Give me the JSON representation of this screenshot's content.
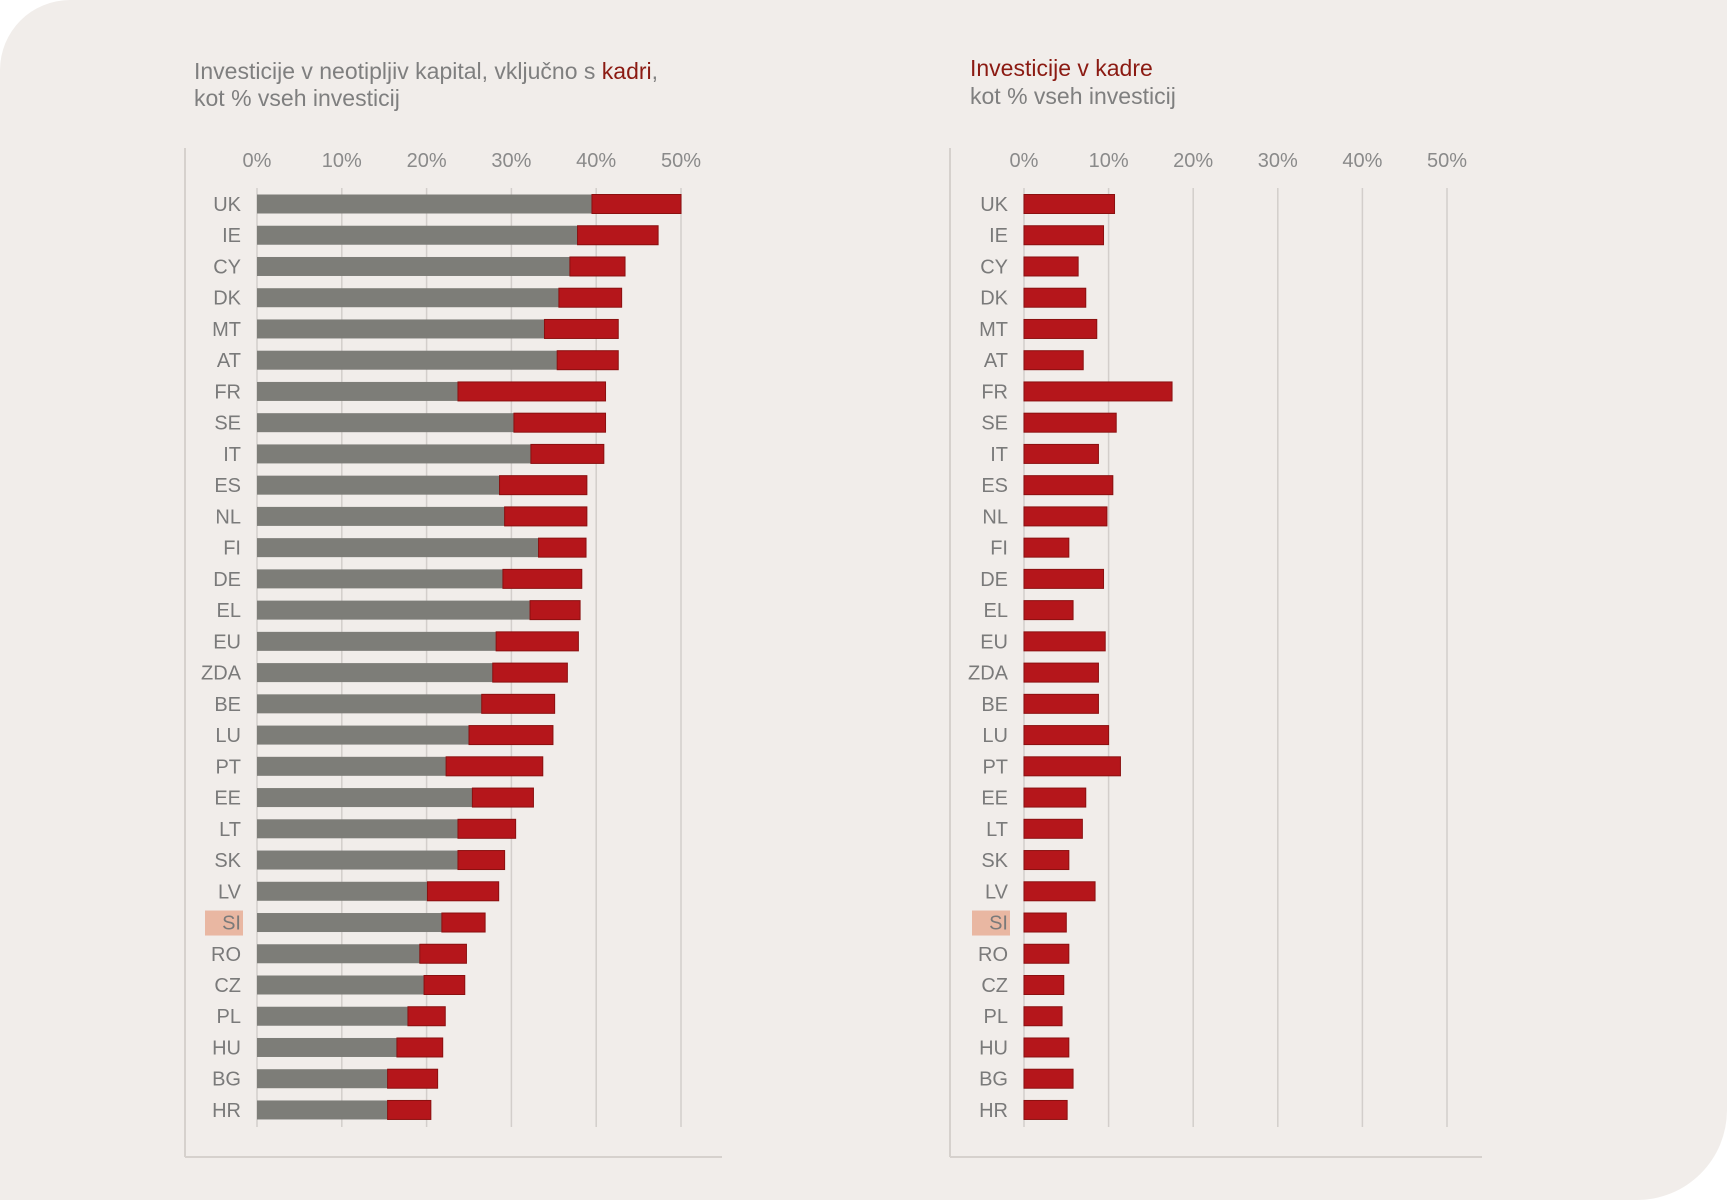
{
  "colors": {
    "background": "#f1edea",
    "other": "#7d7d78",
    "staff": "#b5161b",
    "staff_border": "#8b1010",
    "title_accent": "#8b1a12",
    "highlight": "#e9b7a2",
    "text": "#7f7f7f"
  },
  "chart_data": [
    {
      "type": "bar",
      "orientation": "horizontal",
      "stacked": true,
      "title_parts": [
        "Investicije v neotipljiv kapital, vključno s ",
        "kadri",
        ","
      ],
      "subtitle": "kot % vseh investicij",
      "xlim": [
        0,
        50
      ],
      "ticks": [
        "0%",
        "10%",
        "20%",
        "30%",
        "40%",
        "50%"
      ],
      "grid": true,
      "highlight_category": "SI",
      "categories": [
        "UK",
        "IE",
        "CY",
        "DK",
        "MT",
        "AT",
        "FR",
        "SE",
        "IT",
        "ES",
        "NL",
        "FI",
        "DE",
        "EL",
        "EU",
        "ZDA",
        "BE",
        "LU",
        "PT",
        "EE",
        "LT",
        "SK",
        "LV",
        "SI",
        "RO",
        "CZ",
        "PL",
        "HU",
        "BG",
        "HR"
      ],
      "series": [
        {
          "values": [
            39.5,
            37.8,
            36.9,
            35.6,
            33.9,
            35.4,
            23.7,
            30.3,
            32.3,
            28.6,
            29.2,
            33.2,
            29.0,
            32.2,
            28.2,
            27.8,
            26.5,
            25.0,
            22.3,
            25.4,
            23.7,
            23.7,
            20.1,
            21.8,
            19.2,
            19.7,
            17.8,
            16.5,
            15.4,
            15.4
          ]
        },
        {
          "values": [
            10.5,
            9.5,
            6.5,
            7.4,
            8.7,
            7.2,
            17.4,
            10.8,
            8.6,
            10.3,
            9.7,
            5.6,
            9.3,
            5.9,
            9.7,
            8.8,
            8.6,
            9.9,
            11.4,
            7.2,
            6.8,
            5.5,
            8.4,
            5.1,
            5.5,
            4.8,
            4.4,
            5.4,
            5.9,
            5.1
          ]
        }
      ]
    },
    {
      "type": "bar",
      "orientation": "horizontal",
      "title": "Investicije v kadre",
      "subtitle": "kot % vseh investicij",
      "xlim": [
        0,
        50
      ],
      "ticks": [
        "0%",
        "10%",
        "20%",
        "30%",
        "40%",
        "50%"
      ],
      "grid": true,
      "highlight_category": "SI",
      "categories": [
        "UK",
        "IE",
        "CY",
        "DK",
        "MT",
        "AT",
        "FR",
        "SE",
        "IT",
        "ES",
        "NL",
        "FI",
        "DE",
        "EL",
        "EU",
        "ZDA",
        "BE",
        "LU",
        "PT",
        "EE",
        "LT",
        "SK",
        "LV",
        "SI",
        "RO",
        "CZ",
        "PL",
        "HU",
        "BG",
        "HR"
      ],
      "values": [
        10.7,
        9.4,
        6.4,
        7.3,
        8.6,
        7.0,
        17.5,
        10.9,
        8.8,
        10.5,
        9.8,
        5.3,
        9.4,
        5.8,
        9.6,
        8.8,
        8.8,
        10.0,
        11.4,
        7.3,
        6.9,
        5.3,
        8.4,
        5.0,
        5.3,
        4.7,
        4.5,
        5.3,
        5.8,
        5.1
      ]
    }
  ]
}
